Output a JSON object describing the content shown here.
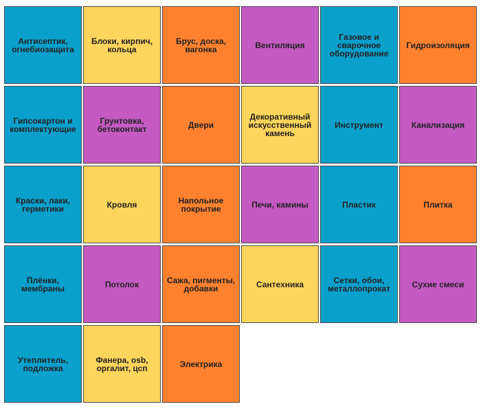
{
  "colors": {
    "blue": "#0aa0cc",
    "yellow": "#fdd55c",
    "orange": "#fe8130",
    "purple": "#c45ac2"
  },
  "tiles": [
    {
      "label": "Антисептик, огнебиозащита",
      "color": "blue"
    },
    {
      "label": "Блоки, кирпич, кольца",
      "color": "yellow"
    },
    {
      "label": "Брус, доска, вагонка",
      "color": "orange"
    },
    {
      "label": "Вентиляция",
      "color": "purple"
    },
    {
      "label": "Газовое и сварочное оборудование",
      "color": "blue"
    },
    {
      "label": "Гидроизоляция",
      "color": "orange"
    },
    {
      "label": "Гипсокартон и комплектующие",
      "color": "blue"
    },
    {
      "label": "Грунтовка, бетоконтакт",
      "color": "purple"
    },
    {
      "label": "Двери",
      "color": "orange"
    },
    {
      "label": "Декоративный искусственный камень",
      "color": "yellow"
    },
    {
      "label": "Инструмент",
      "color": "blue"
    },
    {
      "label": "Канализация",
      "color": "purple"
    },
    {
      "label": "Краски, лаки, герметики",
      "color": "blue"
    },
    {
      "label": "Кровля",
      "color": "yellow"
    },
    {
      "label": "Напольное покрытие",
      "color": "orange"
    },
    {
      "label": "Печи, камины",
      "color": "purple"
    },
    {
      "label": "Пластик",
      "color": "blue"
    },
    {
      "label": "Плитка",
      "color": "orange"
    },
    {
      "label": "Плёнки, мембраны",
      "color": "blue"
    },
    {
      "label": "Потолок",
      "color": "purple"
    },
    {
      "label": "Сажа, пигменты, добавки",
      "color": "orange"
    },
    {
      "label": "Сантехника",
      "color": "yellow"
    },
    {
      "label": "Сетки, обои, металлопрокат",
      "color": "blue"
    },
    {
      "label": "Сухие смеси",
      "color": "purple"
    },
    {
      "label": "Утеплитель, подложка",
      "color": "blue"
    },
    {
      "label": "Фанера, osb, оргалит, цсп",
      "color": "yellow"
    },
    {
      "label": "Электрика",
      "color": "orange"
    }
  ]
}
